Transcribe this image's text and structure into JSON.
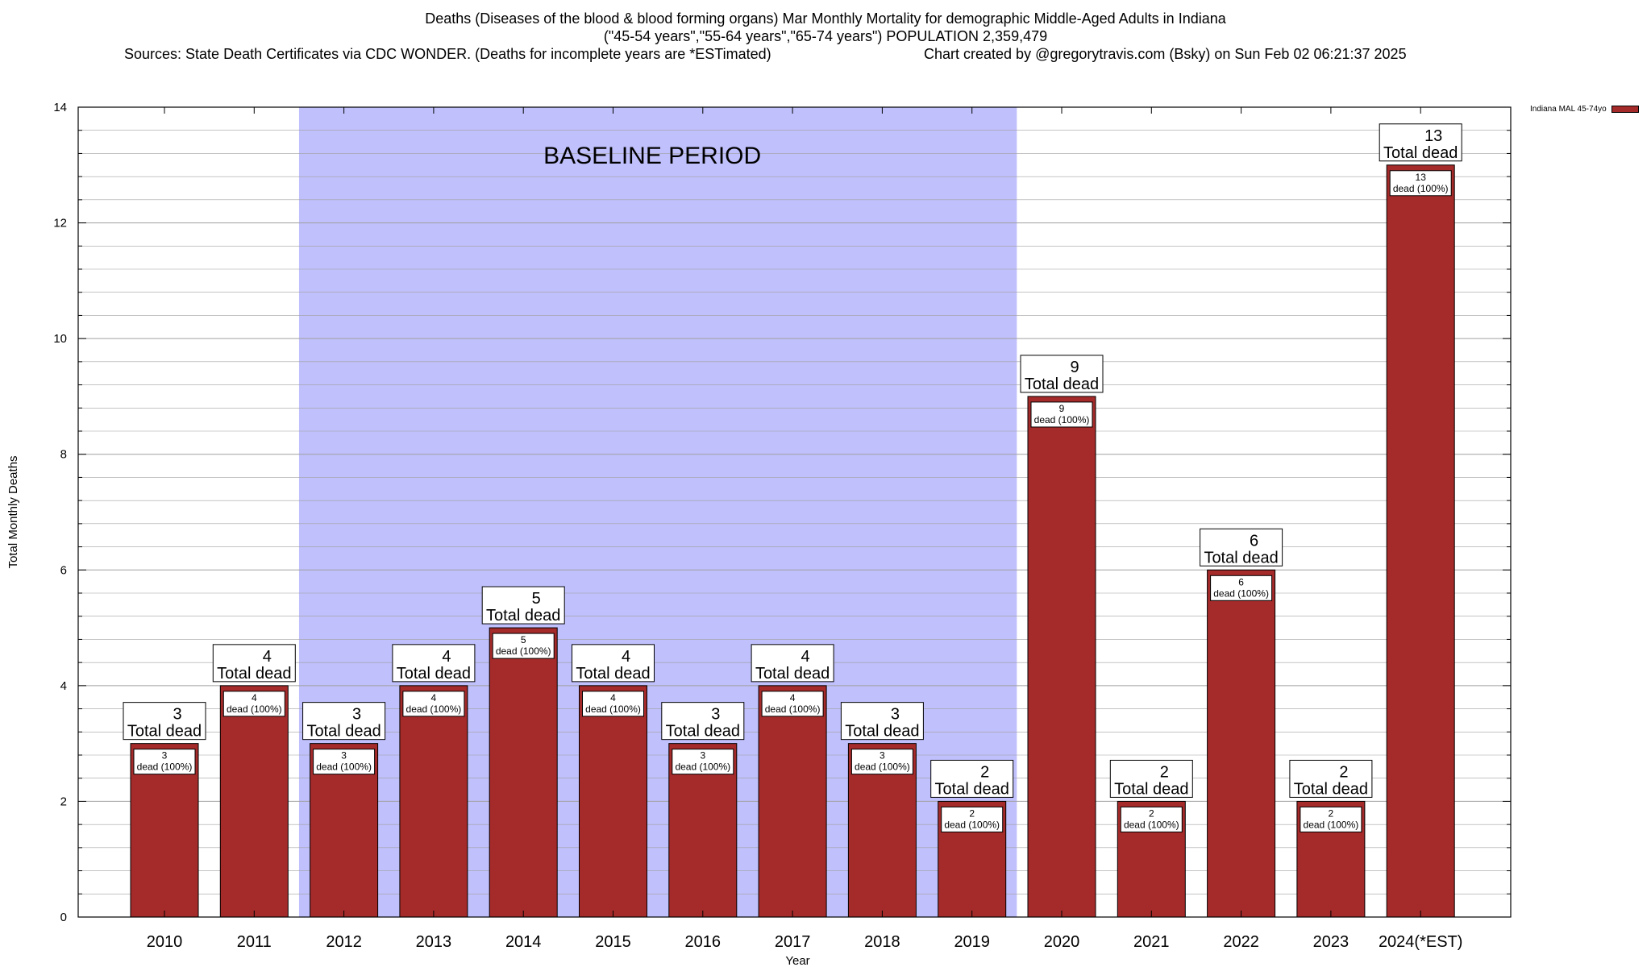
{
  "title": {
    "line1": "Deaths (Diseases of the blood & blood forming organs) Mar Monthly Mortality for demographic Middle-Aged Adults in Indiana",
    "line2": "(\"45-54 years\",\"55-64 years\",\"65-74 years\") POPULATION 2,359,479",
    "sources": "Sources: State Death Certificates via CDC WONDER. (Deaths for incomplete years are *ESTimated)",
    "credit": "Chart created by @gregorytravis.com (Bsky) on Sun Feb 02 06:21:37 2025"
  },
  "colors": {
    "bar": "#a52a2a",
    "baseline_band": "#c0c0fc",
    "grid": "#a0a0a0"
  },
  "chart_data": {
    "type": "bar",
    "xlabel": "Year",
    "ylabel": "Total Monthly Deaths",
    "ylim": [
      0,
      14
    ],
    "y_ticks": [
      0,
      2,
      4,
      6,
      8,
      10,
      12,
      14
    ],
    "grid": true,
    "legend_position": "top-right",
    "categories": [
      "2010",
      "2011",
      "2012",
      "2013",
      "2014",
      "2015",
      "2016",
      "2017",
      "2018",
      "2019",
      "2020",
      "2021",
      "2022",
      "2023",
      "2024(*EST)"
    ],
    "series": [
      {
        "name": "Indiana MAL 45-74yo",
        "values": [
          3,
          4,
          3,
          4,
          5,
          4,
          3,
          4,
          3,
          2,
          9,
          2,
          6,
          2,
          13
        ]
      }
    ],
    "baseline": {
      "label": "BASELINE PERIOD",
      "from": "2012",
      "to": "2019"
    },
    "total_label_suffix": "Total dead",
    "inner_label_suffix": "dead (100%)"
  }
}
